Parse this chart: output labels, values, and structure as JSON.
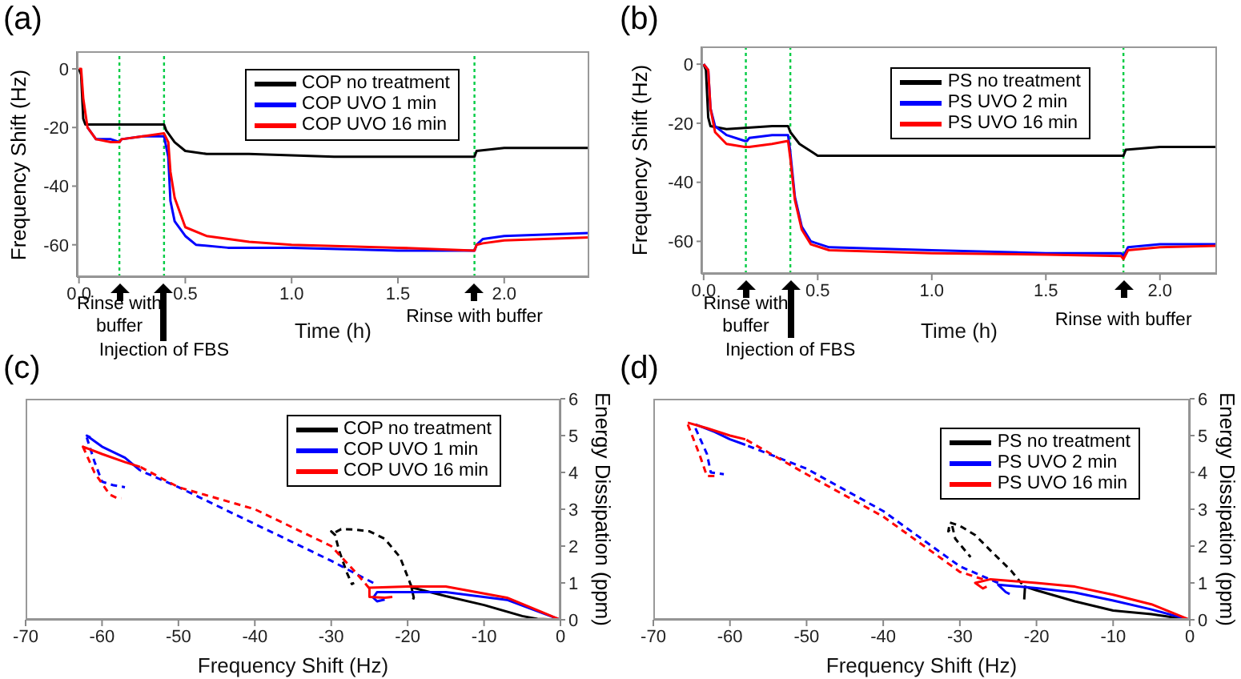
{
  "chart_data": [
    {
      "type": "line",
      "title": "(a)",
      "xlabel": "Time (h)",
      "ylabel": "Frequency Shift (Hz)",
      "xlim": [
        -0.01,
        2.4
      ],
      "xticks": [
        {
          "value": 0,
          "label": "0.0"
        },
        {
          "value": 0.5,
          "label": "0.5"
        },
        {
          "value": 1,
          "label": "1.0"
        },
        {
          "value": 1.5,
          "label": "1.5"
        },
        {
          "value": 2,
          "label": "2.0"
        }
      ],
      "ylim": [
        -71,
        6
      ],
      "yticks": [
        0,
        -20,
        -40,
        -60
      ],
      "grid": false,
      "legend": "top right",
      "line_style": "solid",
      "series": [
        {
          "name": "COP no treatment",
          "color": "#000000",
          "x": [
            0,
            0.01,
            0.02,
            0.03,
            0.1,
            0.2,
            0.3,
            0.4,
            0.41,
            0.45,
            0.5,
            0.6,
            0.8,
            1.2,
            1.6,
            1.86,
            1.87,
            2.0,
            2.4
          ],
          "values": [
            0,
            -2,
            -17,
            -19,
            -19,
            -19,
            -19,
            -19,
            -21,
            -25,
            -28,
            -29,
            -29,
            -30,
            -30,
            -30,
            -28,
            -27,
            -27
          ]
        },
        {
          "name": "COP UVO 1 min",
          "color": "#0000ff",
          "x": [
            0.04,
            0.08,
            0.15,
            0.19,
            0.2,
            0.3,
            0.4,
            0.42,
            0.43,
            0.45,
            0.5,
            0.55,
            0.7,
            1.0,
            1.5,
            1.86,
            1.87,
            1.9,
            2.0,
            2.4
          ],
          "values": [
            -20,
            -24,
            -24,
            -25,
            -24,
            -23,
            -23,
            -30,
            -45,
            -52,
            -57,
            -60,
            -61,
            -61,
            -62,
            -62,
            -60,
            -58,
            -57,
            -56
          ]
        },
        {
          "name": "COP UVO 16 min",
          "color": "#ff0000",
          "x": [
            0,
            0.01,
            0.02,
            0.04,
            0.08,
            0.15,
            0.19,
            0.2,
            0.3,
            0.4,
            0.42,
            0.43,
            0.45,
            0.5,
            0.6,
            0.8,
            1.0,
            1.5,
            1.86,
            1.87,
            1.9,
            2.0,
            2.4
          ],
          "values": [
            0,
            0,
            -10,
            -20,
            -24,
            -25,
            -25,
            -24,
            -23,
            -22,
            -25,
            -35,
            -44,
            -54,
            -57,
            -59,
            -60,
            -61,
            -62,
            -60,
            -59.5,
            -58.5,
            -57.5
          ]
        }
      ],
      "ref_lines": [
        {
          "axis": "x",
          "value": 0.19,
          "color": "#00cc44",
          "line_style": "dotted"
        },
        {
          "axis": "x",
          "value": 0.4,
          "color": "#00cc44",
          "line_style": "dotted"
        },
        {
          "axis": "x",
          "value": 1.86,
          "color": "#00cc44",
          "line_style": "dotted"
        }
      ],
      "annotations": [
        "Rinse with buffer",
        "Injection of FBS",
        "Rinse with buffer"
      ]
    },
    {
      "type": "line",
      "title": "(b)",
      "xlabel": "Time (h)",
      "ylabel": "Frequency Shift (Hz)",
      "xlim": [
        -0.01,
        2.25
      ],
      "xticks": [
        {
          "value": 0,
          "label": "0.0"
        },
        {
          "value": 0.5,
          "label": "0.5"
        },
        {
          "value": 1,
          "label": "1.0"
        },
        {
          "value": 1.5,
          "label": "1.5"
        },
        {
          "value": 2,
          "label": "2.0"
        }
      ],
      "ylim": [
        -71,
        6
      ],
      "yticks": [
        0,
        -20,
        -40,
        -60
      ],
      "grid": false,
      "legend": "top right",
      "line_style": "solid",
      "series": [
        {
          "name": "PS no treatment",
          "color": "#000000",
          "x": [
            0,
            0.01,
            0.02,
            0.03,
            0.1,
            0.3,
            0.37,
            0.38,
            0.42,
            0.5,
            0.6,
            1.0,
            1.5,
            1.84,
            1.85,
            2.0,
            2.25
          ],
          "values": [
            0,
            -2,
            -18,
            -21,
            -22,
            -21,
            -21,
            -23,
            -27,
            -31,
            -31,
            -31,
            -31,
            -31,
            -29,
            -28,
            -28
          ]
        },
        {
          "name": "PS UVO 2 min",
          "color": "#0000ff",
          "x": [
            0,
            0.02,
            0.03,
            0.05,
            0.1,
            0.18,
            0.19,
            0.2,
            0.3,
            0.37,
            0.38,
            0.4,
            0.43,
            0.47,
            0.55,
            1.0,
            1.5,
            1.83,
            1.84,
            1.86,
            2.0,
            2.25
          ],
          "values": [
            0,
            -2,
            -15,
            -21,
            -24,
            -26,
            -26,
            -25,
            -24,
            -24,
            -30,
            -45,
            -55,
            -60,
            -62,
            -63,
            -64,
            -64,
            -65,
            -62,
            -61,
            -61
          ]
        },
        {
          "name": "PS UVO 16 min",
          "color": "#ff0000",
          "x": [
            0,
            0.02,
            0.03,
            0.05,
            0.1,
            0.18,
            0.19,
            0.2,
            0.3,
            0.37,
            0.38,
            0.4,
            0.43,
            0.47,
            0.55,
            1.0,
            1.5,
            1.83,
            1.84,
            1.86,
            2.0,
            2.25
          ],
          "values": [
            0,
            -2,
            -15,
            -23,
            -27,
            -28,
            -28,
            -28,
            -27,
            -26,
            -32,
            -46,
            -56,
            -61,
            -63,
            -64,
            -64.5,
            -65,
            -66,
            -63,
            -62,
            -61.5
          ]
        }
      ],
      "ref_lines": [
        {
          "axis": "x",
          "value": 0.185,
          "color": "#00cc44",
          "line_style": "dotted"
        },
        {
          "axis": "x",
          "value": 0.38,
          "color": "#00cc44",
          "line_style": "dotted"
        },
        {
          "axis": "x",
          "value": 1.84,
          "color": "#00cc44",
          "line_style": "dotted"
        }
      ],
      "annotations": [
        "Rinse with buffer",
        "Injection of FBS",
        "Rinse with buffer"
      ]
    },
    {
      "type": "line",
      "title": "(c)",
      "xlabel": "Frequency Shift (Hz)",
      "y2label": "Energy Dissipation (ppm)",
      "xlim": [
        -70,
        0
      ],
      "xticks": [
        -70,
        -60,
        -50,
        -40,
        -30,
        -20,
        -10,
        0
      ],
      "y2lim": [
        0,
        6
      ],
      "y2ticks": [
        0,
        1,
        2,
        3,
        4,
        5,
        6
      ],
      "grid": false,
      "legend": "top right",
      "series": [
        {
          "name": "COP no treatment",
          "color": "#000000",
          "axis": "y2",
          "line_style": "solid",
          "x": [
            0,
            -3,
            -5,
            -10,
            -15,
            -18,
            -19.5,
            -19.2,
            -19.3
          ],
          "values": [
            0,
            0.02,
            0.1,
            0.4,
            0.64,
            0.8,
            0.88,
            0.6,
            0.55
          ]
        },
        {
          "color": "#000000",
          "axis": "y2",
          "line_style": "dashed",
          "x": [
            -19.5,
            -21,
            -23,
            -25,
            -27,
            -28.7,
            -29.7,
            -30,
            -29.5,
            -29,
            -28,
            -27.3,
            -27
          ],
          "values": [
            0.9,
            1.7,
            2.2,
            2.4,
            2.45,
            2.46,
            2.35,
            2.4,
            2.3,
            1.9,
            1.3,
            0.97,
            1.0
          ]
        },
        {
          "name": "COP UVO 1 min",
          "color": "#0000ff",
          "axis": "y2",
          "line_style": "solid",
          "x": [
            0,
            -7,
            -15,
            -20,
            -24,
            -24.5,
            -24,
            -23
          ],
          "values": [
            0,
            0.54,
            0.75,
            0.75,
            0.75,
            0.6,
            0.5,
            0.55
          ]
        },
        {
          "color": "#0000ff",
          "axis": "y2",
          "line_style": "dashed",
          "x": [
            -24.5,
            -30,
            -40,
            -50,
            -55
          ],
          "values": [
            1.0,
            1.6,
            2.6,
            3.6,
            4.05
          ]
        },
        {
          "color": "#0000ff",
          "axis": "y2",
          "line_style": "solid",
          "x": [
            -55,
            -57,
            -60,
            -62,
            -61.5
          ],
          "values": [
            4.05,
            4.4,
            4.7,
            5.0,
            4.95
          ]
        },
        {
          "color": "#0000ff",
          "axis": "y2",
          "line_style": "dashed",
          "x": [
            -62,
            -61,
            -60,
            -58.5,
            -57
          ],
          "values": [
            4.95,
            4.3,
            3.75,
            3.65,
            3.6
          ]
        },
        {
          "name": "COP UVO 16 min",
          "color": "#ff0000",
          "axis": "y2",
          "line_style": "solid",
          "x": [
            0,
            -7,
            -15,
            -20,
            -25,
            -25,
            -23,
            -22
          ],
          "values": [
            0,
            0.6,
            0.9,
            0.9,
            0.87,
            0.62,
            0.6,
            0.62
          ]
        },
        {
          "color": "#ff0000",
          "axis": "y2",
          "line_style": "dashed",
          "x": [
            -25,
            -27,
            -30,
            -40,
            -50,
            -55
          ],
          "values": [
            0.85,
            1.33,
            2.0,
            3.0,
            3.6,
            4.15
          ]
        },
        {
          "color": "#ff0000",
          "axis": "y2",
          "line_style": "solid",
          "x": [
            -55,
            -57,
            -60,
            -62.5,
            -62
          ],
          "values": [
            4.15,
            4.28,
            4.5,
            4.7,
            4.65
          ]
        },
        {
          "color": "#ff0000",
          "axis": "y2",
          "line_style": "dashed",
          "x": [
            -62.5,
            -61,
            -59,
            -58,
            -57.5
          ],
          "values": [
            4.7,
            4.0,
            3.4,
            3.3,
            3.3
          ]
        }
      ]
    },
    {
      "type": "line",
      "title": "(d)",
      "xlabel": "Frequency Shift (Hz)",
      "y2label": "Energy Dissipation (ppm)",
      "xlim": [
        -70,
        0
      ],
      "xticks": [
        -70,
        -60,
        -50,
        -40,
        -30,
        -20,
        -10,
        0
      ],
      "y2lim": [
        0,
        6
      ],
      "y2ticks": [
        0,
        1,
        2,
        3,
        4,
        5,
        6
      ],
      "grid": false,
      "legend": "top right",
      "series": [
        {
          "name": "PS no treatment",
          "color": "#000000",
          "axis": "y2",
          "line_style": "solid",
          "x": [
            0,
            -5,
            -10,
            -15,
            -20,
            -21.5,
            -21.6
          ],
          "values": [
            0,
            0.15,
            0.25,
            0.5,
            0.8,
            0.9,
            0.55
          ]
        },
        {
          "color": "#000000",
          "axis": "y2",
          "line_style": "dashed",
          "x": [
            -21.9,
            -23.3,
            -26.1,
            -28,
            -30,
            -31.3,
            -31.5,
            -31,
            -30.6,
            -28.6
          ],
          "values": [
            0.97,
            1.33,
            1.9,
            2.3,
            2.55,
            2.64,
            2.4,
            2.55,
            2.2,
            1.7
          ]
        },
        {
          "name": "PS UVO 2 min",
          "color": "#0000ff",
          "axis": "y2",
          "line_style": "solid",
          "x": [
            0,
            -5,
            -10,
            -15,
            -20,
            -25,
            -24,
            -23.5
          ],
          "values": [
            0,
            0.28,
            0.52,
            0.74,
            0.86,
            0.95,
            0.75,
            0.7
          ]
        },
        {
          "color": "#0000ff",
          "axis": "y2",
          "line_style": "dashed",
          "x": [
            -25,
            -30,
            -40,
            -50,
            -58
          ],
          "values": [
            1.0,
            1.45,
            2.95,
            4.1,
            4.75
          ]
        },
        {
          "color": "#0000ff",
          "axis": "y2",
          "line_style": "solid",
          "x": [
            -58,
            -60,
            -62,
            -64.5
          ],
          "values": [
            4.75,
            4.9,
            5.1,
            5.3
          ]
        },
        {
          "color": "#0000ff",
          "axis": "y2",
          "line_style": "dashed",
          "x": [
            -64.5,
            -63,
            -62.5,
            -60.8
          ],
          "values": [
            5.2,
            4.5,
            4.0,
            3.95
          ]
        },
        {
          "name": "PS UVO 16 min",
          "color": "#ff0000",
          "axis": "y2",
          "line_style": "solid",
          "x": [
            0,
            -5,
            -10,
            -15,
            -20,
            -26,
            -28,
            -27,
            -26.5
          ],
          "values": [
            0,
            0.42,
            0.68,
            0.9,
            1.0,
            1.1,
            1.0,
            0.85,
            0.9
          ]
        },
        {
          "color": "#ff0000",
          "axis": "y2",
          "line_style": "dashed",
          "x": [
            -27,
            -30,
            -40,
            -50,
            -58
          ],
          "values": [
            1.1,
            1.3,
            2.8,
            3.95,
            4.9
          ]
        },
        {
          "color": "#ff0000",
          "axis": "y2",
          "line_style": "solid",
          "x": [
            -58,
            -60,
            -63,
            -65.5
          ],
          "values": [
            4.9,
            5.0,
            5.2,
            5.35
          ]
        },
        {
          "color": "#ff0000",
          "axis": "y2",
          "line_style": "dashed",
          "x": [
            -65.5,
            -64,
            -63,
            -61.5
          ],
          "values": [
            5.3,
            4.5,
            3.9,
            3.9
          ]
        }
      ]
    }
  ]
}
